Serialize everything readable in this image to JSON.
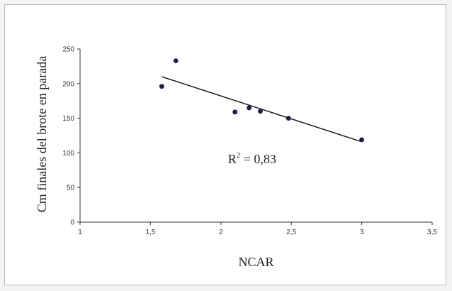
{
  "chart_data": {
    "type": "scatter",
    "title": "",
    "xlabel": "NCAR",
    "ylabel": "Cm finales del brote en parada",
    "xlim": [
      1,
      3.5
    ],
    "ylim": [
      0,
      250
    ],
    "x_ticks": [
      "1",
      "1,5",
      "2",
      "2,5",
      "3",
      "3,5"
    ],
    "x_tick_values": [
      1,
      1.5,
      2,
      2.5,
      3,
      3.5
    ],
    "y_ticks": [
      "0",
      "50",
      "100",
      "150",
      "200",
      "250"
    ],
    "y_tick_values": [
      0,
      50,
      100,
      150,
      200,
      250
    ],
    "grid": false,
    "points": [
      {
        "x": 1.58,
        "y": 196
      },
      {
        "x": 1.68,
        "y": 233
      },
      {
        "x": 2.1,
        "y": 159
      },
      {
        "x": 2.2,
        "y": 165
      },
      {
        "x": 2.28,
        "y": 160
      },
      {
        "x": 2.48,
        "y": 150
      },
      {
        "x": 3.0,
        "y": 119
      }
    ],
    "trendline": {
      "x1": 1.58,
      "y1": 210,
      "x2": 3.0,
      "y2": 116
    },
    "annotation": {
      "prefix": "R",
      "superscript": "2",
      "suffix": " = 0,83",
      "x": 2.05,
      "y": 85
    },
    "colors": {
      "marker": "#1a1f4e",
      "line": "#1a1a1a",
      "axis": "#333333"
    }
  }
}
